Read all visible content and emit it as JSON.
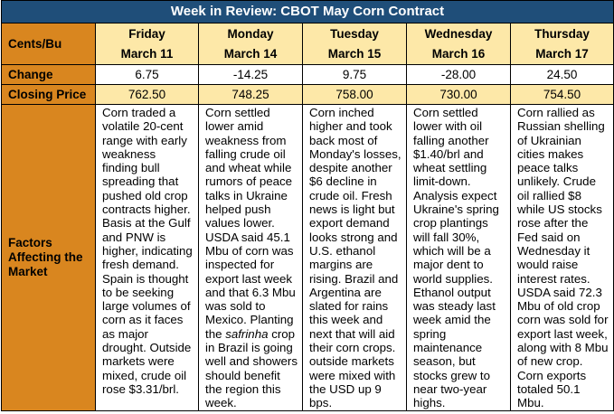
{
  "title": "Week in Review: CBOT May Corn Contract",
  "row_labels": {
    "units": "Cents/Bu",
    "change": "Change",
    "closing": "Closing Price",
    "factors_line1": "Factors",
    "factors_line2": "Affecting the",
    "factors_line3": "Market"
  },
  "days": [
    {
      "day": "Friday",
      "date": "March 11",
      "change": "6.75",
      "closing": "762.50",
      "factors": "Corn traded a volatile 20-cent range with early weakness finding bull spreading that pushed old crop contracts higher. Basis at the Gulf and PNW is higher, indicating fresh demand. Spain is thought to be seeking large volumes of corn as it faces as major drought. Outside markets were mixed, crude oil rose $3.31/brl."
    },
    {
      "day": "Monday",
      "date": "March 14",
      "change": "-14.25",
      "closing": "748.25",
      "factors_before": "Corn settled lower amid weakness from falling crude oil and wheat while rumors of peace talks in Ukraine helped push values lower. USDA said 45.1 Mbu of corn was inspected for export last week and that 6.3 Mbu was sold to Mexico. Planting the ",
      "factors_italic": "safrinha",
      "factors_after": " crop in Brazil is going well and showers should benefit the region this week."
    },
    {
      "day": "Tuesday",
      "date": "March 15",
      "change": "9.75",
      "closing": "758.00",
      "factors": "Corn inched higher and took back most of Monday's losses, despite another $6 decline in crude oil. Fresh news is light but export demand looks strong and U.S. ethanol margins are rising. Brazil and Argentina are slated for rains this week and next that will aid their corn crops. outside markets were mixed with the USD up 9 bps."
    },
    {
      "day": "Wednesday",
      "date": "March 16",
      "change": "-28.00",
      "closing": "730.00",
      "factors": "Corn settled lower with oil falling another $1.40/brl and wheat settling limit-down. Analysis expect Ukraine's spring crop plantings will fall 30%, which will be a major dent to world supplies. Ethanol output was steady last week amid the spring maintenance season, but stocks grew to near two-year highs."
    },
    {
      "day": "Thursday",
      "date": "March 17",
      "change": "24.50",
      "closing": "754.50",
      "factors": "Corn rallied as Russian shelling of Ukrainian cities makes peace talks unlikely. Crude oil rallied $8 while US stocks rose after the Fed said on Wednesday it would raise interest rates. USDA said 72.3 Mbu of old crop corn was sold for export last week, along with 8 Mbu of new crop. Corn exports totaled 50.1 Mbu."
    }
  ]
}
